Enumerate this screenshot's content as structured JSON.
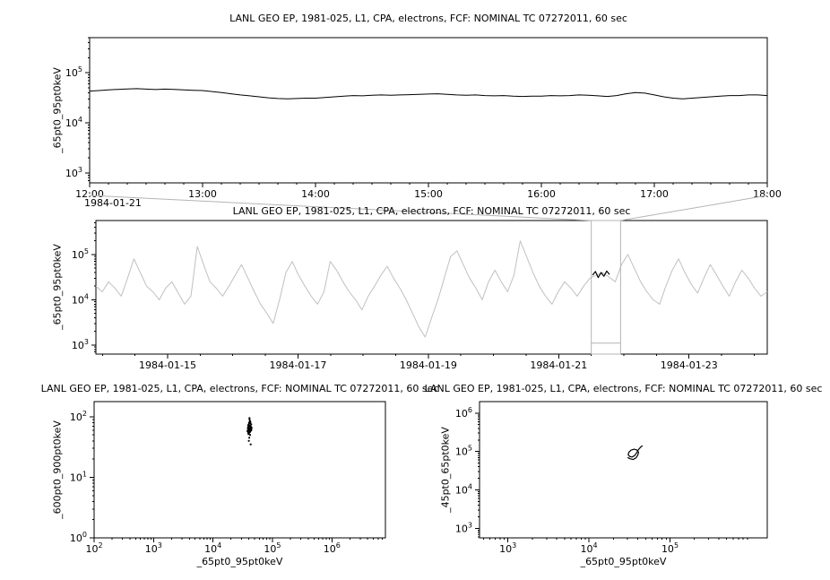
{
  "chart_data": [
    {
      "id": "zoom-timeseries",
      "type": "line",
      "title": "LANL GEO EP, 1981-025, L1, CPA, electrons, FCF: NOMINAL TC 07272011, 60 sec",
      "ylabel": "_65pt0_95pt0keV",
      "x_context_label": "1984-01-21",
      "x_axis": {
        "type": "linear",
        "lim": [
          12,
          18
        ],
        "minor_step": 0.16667,
        "ticks": [
          {
            "v": 12,
            "label": "12:00"
          },
          {
            "v": 13,
            "label": "13:00"
          },
          {
            "v": 14,
            "label": "14:00"
          },
          {
            "v": 15,
            "label": "15:00"
          },
          {
            "v": 16,
            "label": "16:00"
          },
          {
            "v": 17,
            "label": "17:00"
          },
          {
            "v": 18,
            "label": "18:00"
          }
        ]
      },
      "y_axis": {
        "type": "log",
        "lim_log": [
          2.8,
          5.7
        ],
        "tick_exps": [
          3,
          4,
          5
        ]
      },
      "series": {
        "color": "#000000",
        "width": 1,
        "x_start": 12,
        "x_end": 18,
        "values": [
          43000,
          44000,
          45500,
          46500,
          47500,
          48000,
          47000,
          46000,
          47000,
          46500,
          45500,
          44500,
          44000,
          42000,
          40000,
          38000,
          36000,
          34500,
          33000,
          31500,
          30500,
          30000,
          30500,
          31000,
          31000,
          32000,
          33000,
          34000,
          35000,
          34500,
          35500,
          36000,
          35500,
          36000,
          36500,
          37000,
          37500,
          38000,
          37000,
          36000,
          35500,
          36000,
          35000,
          34500,
          35000,
          34000,
          33500,
          34000,
          34000,
          35000,
          34500,
          35000,
          36000,
          35500,
          34500,
          33500,
          35000,
          38000,
          40000,
          39000,
          36000,
          33000,
          31000,
          30000,
          31000,
          32000,
          33000,
          34000,
          35000,
          35000,
          36000,
          36000,
          35000
        ]
      }
    },
    {
      "id": "overview-timeseries",
      "type": "line",
      "title": "LANL GEO EP, 1981-025, L1, CPA, electrons, FCF: NOMINAL TC 07272011, 60 sec",
      "ylabel": "_65pt0_95pt0keV",
      "x_axis": {
        "type": "linear",
        "lim": [
          13.9,
          24.2
        ],
        "minor_step": 0.5,
        "ticks": [
          {
            "v": 15,
            "label": "1984-01-15"
          },
          {
            "v": 17,
            "label": "1984-01-17"
          },
          {
            "v": 19,
            "label": "1984-01-19"
          },
          {
            "v": 21,
            "label": "1984-01-21"
          },
          {
            "v": 23,
            "label": "1984-01-23"
          }
        ]
      },
      "y_axis": {
        "type": "log",
        "lim_log": [
          2.8,
          5.75
        ],
        "tick_exps": [
          3,
          4,
          5
        ]
      },
      "series": {
        "color": "#c0c0c0",
        "width": 1,
        "x_start": 13.9,
        "x_end": 24.2,
        "values": [
          20000,
          15000,
          25000,
          18000,
          12000,
          30000,
          80000,
          40000,
          20000,
          15000,
          10000,
          18000,
          25000,
          14000,
          8000,
          12000,
          150000,
          60000,
          25000,
          18000,
          12000,
          20000,
          35000,
          60000,
          30000,
          15000,
          8000,
          5000,
          3000,
          10000,
          40000,
          70000,
          35000,
          20000,
          12000,
          8000,
          15000,
          70000,
          45000,
          25000,
          15000,
          10000,
          6000,
          12000,
          20000,
          35000,
          55000,
          30000,
          18000,
          10000,
          5000,
          2500,
          1500,
          4000,
          10000,
          30000,
          90000,
          120000,
          60000,
          30000,
          18000,
          10000,
          25000,
          45000,
          25000,
          15000,
          35000,
          200000,
          90000,
          40000,
          20000,
          12000,
          8000,
          15000,
          25000,
          18000,
          12000,
          20000,
          30000,
          35000,
          40000,
          32000,
          25000,
          60000,
          100000,
          50000,
          25000,
          15000,
          10000,
          8000,
          20000,
          45000,
          80000,
          40000,
          22000,
          14000,
          30000,
          60000,
          35000,
          20000,
          12000,
          25000,
          45000,
          30000,
          18000,
          12000,
          15000
        ]
      },
      "highlight_series": {
        "color": "#000000",
        "width": 1.2,
        "x_start": 21.52,
        "x_end": 21.78,
        "values": [
          35000,
          42000,
          31000,
          40000,
          33000,
          43000,
          36000
        ]
      },
      "selection": {
        "x0": 21.5,
        "x1": 21.95,
        "context_line_value": 1100,
        "color": "#b4b4b4"
      }
    },
    {
      "id": "scatter-600-900",
      "type": "scatter",
      "title": "LANL GEO EP, 1981-025, L1, CPA, electrons, FCF: NOMINAL TC 07272011, 60 sec",
      "ylabel": "_600pt0_900pt0keV",
      "xlabel": "_65pt0_95pt0keV",
      "x_axis": {
        "type": "log",
        "lim_log": [
          2,
          6.9
        ],
        "tick_exps": [
          2,
          3,
          4,
          5,
          6
        ]
      },
      "y_axis": {
        "type": "log",
        "lim_log": [
          0,
          2.25
        ],
        "tick_exps": [
          0,
          1,
          2
        ]
      },
      "point_color": "#000000",
      "points": [
        [
          40000,
          60
        ],
        [
          41000,
          65
        ],
        [
          39000,
          55
        ],
        [
          42000,
          70
        ],
        [
          43000,
          62
        ],
        [
          38000,
          58
        ],
        [
          44000,
          75
        ],
        [
          40500,
          80
        ],
        [
          41500,
          68
        ],
        [
          39500,
          52
        ],
        [
          42500,
          64
        ],
        [
          43500,
          59
        ],
        [
          40200,
          72
        ],
        [
          41800,
          85
        ],
        [
          38500,
          63
        ],
        [
          44500,
          66
        ],
        [
          40800,
          57
        ],
        [
          42200,
          78
        ],
        [
          39800,
          61
        ],
        [
          43200,
          69
        ],
        [
          41200,
          90
        ],
        [
          40400,
          54
        ],
        [
          42800,
          67
        ],
        [
          39200,
          73
        ],
        [
          44000,
          60
        ],
        [
          40600,
          63
        ],
        [
          41600,
          58
        ],
        [
          42400,
          71
        ],
        [
          39600,
          65
        ],
        [
          43600,
          62
        ],
        [
          40300,
          76
        ],
        [
          41900,
          56
        ],
        [
          38800,
          68
        ],
        [
          44200,
          64
        ],
        [
          40900,
          59
        ],
        [
          42600,
          82
        ],
        [
          39400,
          66
        ],
        [
          43400,
          61
        ],
        [
          41400,
          70
        ],
        [
          40700,
          45
        ],
        [
          42000,
          50
        ],
        [
          41000,
          95
        ],
        [
          40000,
          40
        ],
        [
          43000,
          35
        ]
      ]
    },
    {
      "id": "scatter-45-65",
      "type": "line",
      "title": "LANL GEO EP, 1981-025, L1, CPA, electrons, FCF: NOMINAL TC 07272011, 60 sec",
      "ylabel": "_45pt0_65pt0keV",
      "xlabel": "_65pt0_95pt0keV",
      "x_axis": {
        "type": "log",
        "lim_log": [
          2.65,
          6.2
        ],
        "tick_exps": [
          3,
          4,
          5
        ]
      },
      "y_axis": {
        "type": "log",
        "lim_log": [
          2.75,
          6.3
        ],
        "tick_exps": [
          3,
          4,
          5,
          6
        ]
      },
      "points": [
        [
          30000,
          70000
        ],
        [
          32000,
          65000
        ],
        [
          35000,
          62000
        ],
        [
          38000,
          68000
        ],
        [
          40000,
          80000
        ],
        [
          41000,
          95000
        ],
        [
          39000,
          110000
        ],
        [
          36000,
          115000
        ],
        [
          33000,
          108000
        ],
        [
          31000,
          95000
        ],
        [
          30500,
          82000
        ],
        [
          32000,
          74000
        ],
        [
          34000,
          72000
        ],
        [
          36500,
          78000
        ],
        [
          38500,
          90000
        ],
        [
          40000,
          105000
        ],
        [
          42000,
          120000
        ],
        [
          44000,
          135000
        ],
        [
          46000,
          140000
        ]
      ]
    }
  ]
}
